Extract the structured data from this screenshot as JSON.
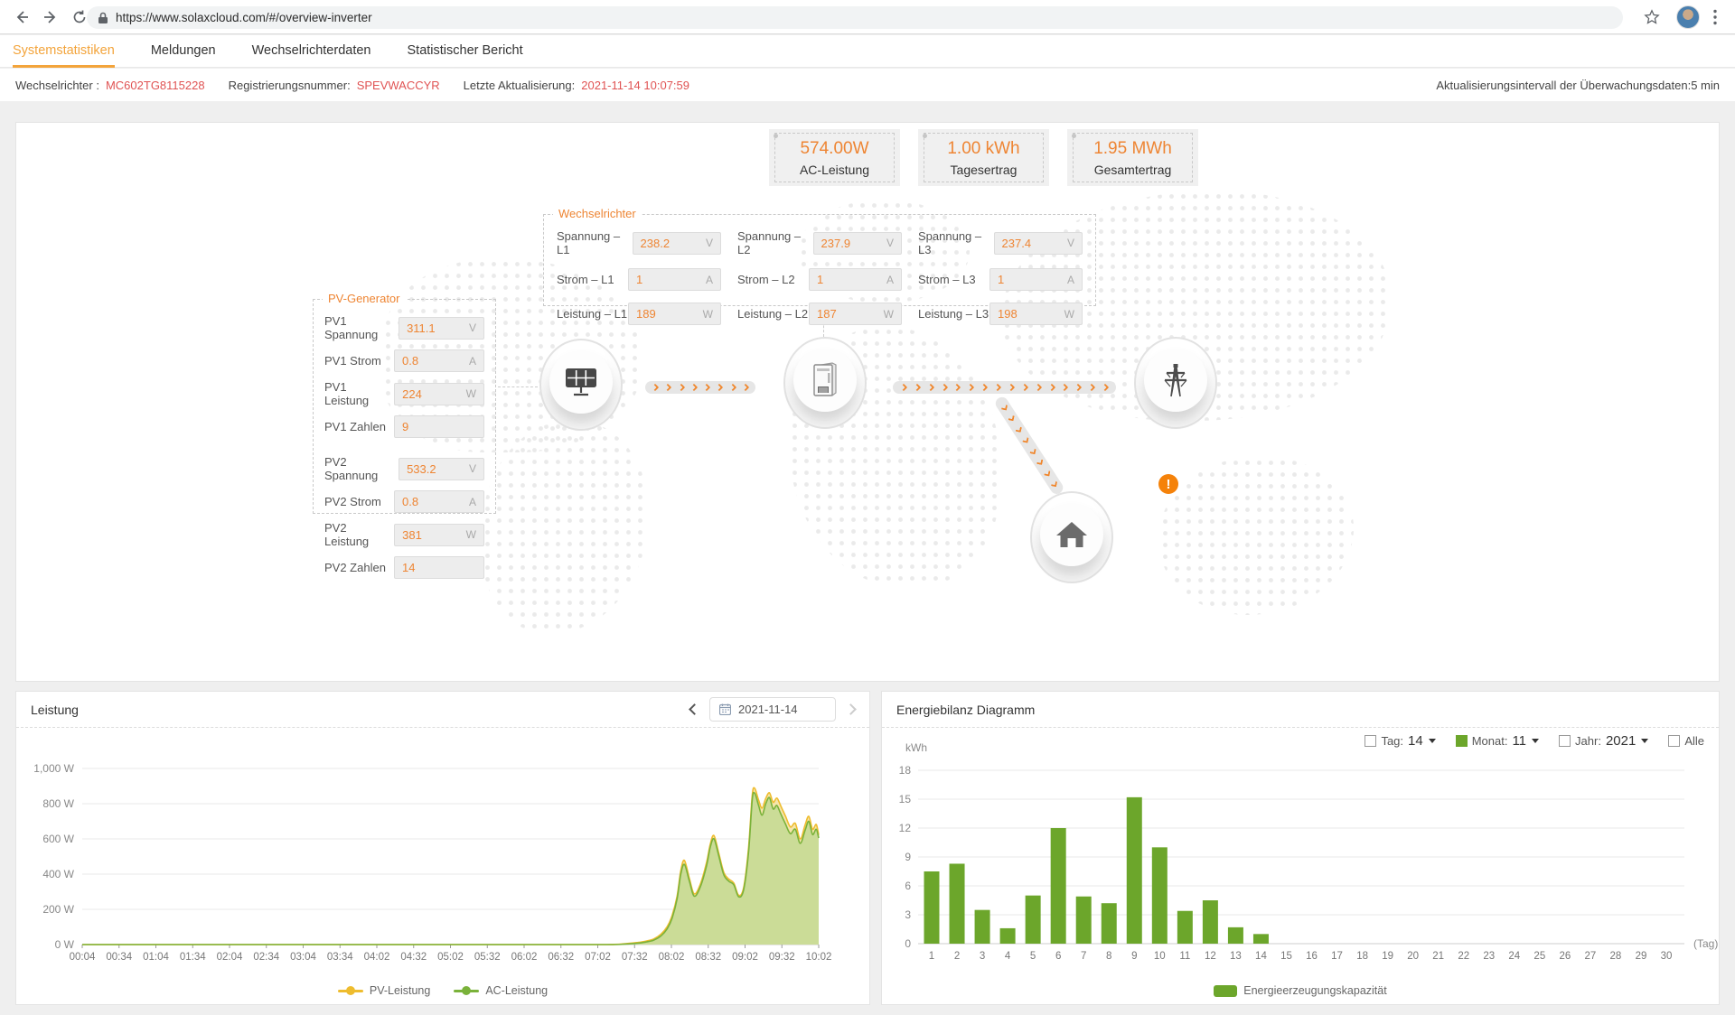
{
  "browser": {
    "url": "https://www.solaxcloud.com/#/overview-inverter"
  },
  "nav": {
    "tabs": [
      {
        "label": "Systemstatistiken",
        "active": true
      },
      {
        "label": "Meldungen",
        "active": false
      },
      {
        "label": "Wechselrichterdaten",
        "active": false
      },
      {
        "label": "Statistischer Bericht",
        "active": false
      }
    ]
  },
  "info_bar": {
    "items": [
      {
        "label": "Wechselrichter :",
        "value": "MC602TG8115228"
      },
      {
        "label": "Registrierungsnummer:",
        "value": "SPEVWACCYR"
      },
      {
        "label": "Letzte Aktualisierung:",
        "value": "2021-11-14 10:07:59"
      }
    ],
    "interval_note": "Aktualisierungsintervall der Überwachungsdaten:5 min"
  },
  "stats": [
    {
      "value": "574.00W",
      "label": "AC-Leistung"
    },
    {
      "value": "1.00 kWh",
      "label": "Tagesertrag"
    },
    {
      "value": "1.95 MWh",
      "label": "Gesamtertrag"
    }
  ],
  "inverter_panel": {
    "title": "Wechselrichter",
    "fields": [
      {
        "label": "Spannung – L1",
        "value": "238.2",
        "unit": "V"
      },
      {
        "label": "Spannung – L2",
        "value": "237.9",
        "unit": "V"
      },
      {
        "label": "Spannung – L3",
        "value": "237.4",
        "unit": "V"
      },
      {
        "label": "Strom – L1",
        "value": "1",
        "unit": "A"
      },
      {
        "label": "Strom – L2",
        "value": "1",
        "unit": "A"
      },
      {
        "label": "Strom – L3",
        "value": "1",
        "unit": "A"
      },
      {
        "label": "Leistung – L1",
        "value": "189",
        "unit": "W"
      },
      {
        "label": "Leistung – L2",
        "value": "187",
        "unit": "W"
      },
      {
        "label": "Leistung – L3",
        "value": "198",
        "unit": "W"
      }
    ]
  },
  "pv_panel": {
    "title": "PV-Generator",
    "fields": [
      {
        "label": "PV1 Spannung",
        "value": "311.1",
        "unit": "V"
      },
      {
        "label": "PV1 Strom",
        "value": "0.8",
        "unit": "A"
      },
      {
        "label": "PV1 Leistung",
        "value": "224",
        "unit": "W"
      },
      {
        "label": "PV1 Zahlen",
        "value": "9",
        "unit": ""
      },
      {
        "label": "PV2 Spannung",
        "value": "533.2",
        "unit": "V"
      },
      {
        "label": "PV2 Strom",
        "value": "0.8",
        "unit": "A"
      },
      {
        "label": "PV2 Leistung",
        "value": "381",
        "unit": "W"
      },
      {
        "label": "PV2 Zahlen",
        "value": "14",
        "unit": ""
      }
    ]
  },
  "diagram": {
    "alert": "!"
  },
  "power_card": {
    "title": "Leistung",
    "date": "2021-11-14"
  },
  "energy_card": {
    "title": "Energiebilanz Diagramm",
    "filters": [
      {
        "label": "Tag:",
        "value": "14",
        "checked": false,
        "has_dropdown": true
      },
      {
        "label": "Monat:",
        "value": "11",
        "checked": true,
        "has_dropdown": true
      },
      {
        "label": "Jahr:",
        "value": "2021",
        "checked": false,
        "has_dropdown": true
      },
      {
        "label": "Alle",
        "value": "",
        "checked": false,
        "has_dropdown": false
      }
    ]
  },
  "chart_data": [
    {
      "type": "area",
      "title": "Leistung",
      "date": "2021-11-14",
      "ylabel": "W",
      "ylim": [
        0,
        1000
      ],
      "y_ticks": [
        "1,000 W",
        "800 W",
        "600 W",
        "400 W",
        "200 W",
        "0 W"
      ],
      "x_ticks": [
        "00:04",
        "00:34",
        "01:04",
        "01:34",
        "02:04",
        "02:34",
        "03:04",
        "03:34",
        "04:02",
        "04:32",
        "05:02",
        "05:32",
        "06:02",
        "06:32",
        "07:02",
        "07:32",
        "08:02",
        "08:32",
        "09:02",
        "09:32",
        "10:02"
      ],
      "x_minutes": [
        4,
        124,
        244,
        364,
        430,
        445,
        455,
        462,
        468,
        474,
        479,
        483,
        487,
        490,
        493,
        497,
        501,
        506,
        511,
        514,
        517,
        521,
        525,
        529,
        533,
        537,
        541,
        545,
        548,
        550,
        553,
        556,
        559,
        562,
        565,
        568,
        571,
        575,
        579,
        583,
        587,
        591,
        594,
        597,
        600,
        602
      ],
      "series": [
        {
          "name": "PV-Leistung",
          "color": "#eebc2e",
          "fill": "#f6e5ab",
          "values": [
            0,
            0,
            0,
            0,
            0,
            5,
            12,
            20,
            32,
            60,
            102,
            165,
            275,
            420,
            478,
            375,
            288,
            345,
            468,
            572,
            618,
            515,
            408,
            372,
            350,
            280,
            322,
            545,
            845,
            888,
            825,
            775,
            830,
            862,
            808,
            832,
            790,
            730,
            668,
            688,
            600,
            680,
            728,
            655,
            682,
            622
          ]
        },
        {
          "name": "AC-Leistung",
          "color": "#7ab23a",
          "fill": "#cbdc97",
          "values": [
            0,
            0,
            0,
            0,
            0,
            3,
            8,
            15,
            25,
            50,
            90,
            150,
            260,
            400,
            455,
            360,
            275,
            330,
            450,
            555,
            600,
            500,
            395,
            360,
            340,
            272,
            310,
            520,
            820,
            860,
            795,
            735,
            800,
            835,
            770,
            790,
            745,
            685,
            630,
            655,
            575,
            650,
            700,
            625,
            655,
            605
          ]
        }
      ],
      "legend_position": "bottom",
      "grid": true
    },
    {
      "type": "bar",
      "title": "Energiebilanz Diagramm",
      "unit": "kWh",
      "xlabel": "(Tag)",
      "categories": [
        1,
        2,
        3,
        4,
        5,
        6,
        7,
        8,
        9,
        10,
        11,
        12,
        13,
        14,
        15,
        16,
        17,
        18,
        19,
        20,
        21,
        22,
        23,
        24,
        25,
        26,
        27,
        28,
        29,
        30
      ],
      "values": [
        7.5,
        8.3,
        3.5,
        1.6,
        5,
        12,
        4.9,
        4.2,
        15.2,
        10,
        3.4,
        4.5,
        1.7,
        1,
        0,
        0,
        0,
        0,
        0,
        0,
        0,
        0,
        0,
        0,
        0,
        0,
        0,
        0,
        0,
        0
      ],
      "ylim": [
        0,
        18
      ],
      "y_ticks": [
        0,
        3,
        6,
        9,
        12,
        15,
        18
      ],
      "bar_color": "#6ca62b",
      "legend": [
        "Energieerzeugungskapazität"
      ],
      "legend_position": "bottom",
      "grid": true
    }
  ],
  "colors": {
    "accent_orange": "#ee8533",
    "tab_orange": "#f3a43b",
    "value_red": "#e05353",
    "bar_green": "#6ca62b",
    "pv_yellow": "#eebc2e",
    "ac_green": "#7ab23a",
    "alert_orange": "#f5820a"
  }
}
